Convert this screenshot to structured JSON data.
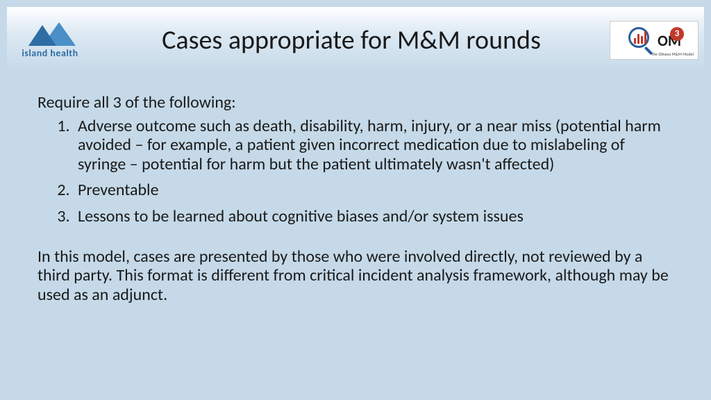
{
  "colors": {
    "slide_background": "#c5d9e8",
    "header_gradient_top": "#ffffff",
    "header_gradient_bottom": "#c5d9e8",
    "text": "#1a1a1a",
    "logo_blue_dark": "#2e6da4",
    "logo_blue_light": "#4a8fc7",
    "accent_red": "#c0392b",
    "om_border_blue": "#2a5c9a"
  },
  "typography": {
    "title_fontsize": 38,
    "body_fontsize": 24,
    "font_family": "Calibri"
  },
  "header": {
    "title": "Cases appropriate for M&M rounds",
    "left_logo": {
      "name": "island-health-logo",
      "text": "island health"
    },
    "right_logo": {
      "name": "ottawa-mm-model-logo",
      "om_text": "OM",
      "badge": "3",
      "subtext": "the Ottawa M&M Model"
    }
  },
  "body": {
    "intro": "Require all 3 of the following:",
    "items": [
      "Adverse outcome such as death, disability, harm, injury, or a near miss (potential harm avoided – for example, a  patient given incorrect medication due to mislabeling of syringe – potential for harm but the patient ultimately wasn't affected)",
      "Preventable",
      "Lessons to be learned about cognitive biases and/or system issues"
    ],
    "closing": "In this model, cases are presented by those who were involved directly, not reviewed by a third party. This format is different from critical incident analysis framework, although may be used as an adjunct."
  }
}
